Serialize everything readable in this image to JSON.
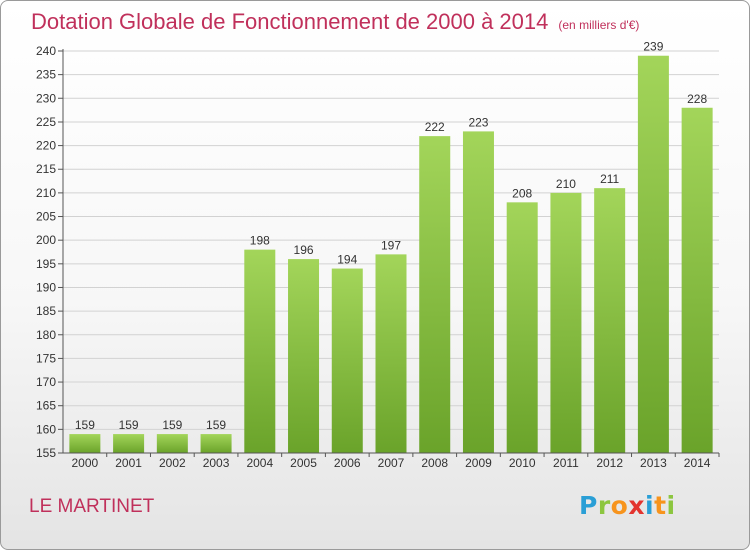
{
  "header": {
    "title": "Dotation Globale de Fonctionnement de 2000 à 2014",
    "subtitle": "(en milliers d'€)"
  },
  "footer": {
    "place": "LE MARTINET",
    "logo_letters": [
      {
        "ch": "P",
        "color": "#2a9fd6"
      },
      {
        "ch": "r",
        "color": "#8cc63f"
      },
      {
        "ch": "o",
        "color": "#f7941d"
      },
      {
        "ch": "x",
        "color": "#e3342f"
      },
      {
        "ch": "i",
        "color": "#2a9fd6"
      },
      {
        "ch": "t",
        "color": "#f7941d"
      },
      {
        "ch": "i",
        "color": "#8cc63f"
      }
    ]
  },
  "colors": {
    "bar_light": "#a3d55a",
    "bar_dark": "#6aa32a",
    "title": "#c0305b"
  },
  "chart_data": {
    "type": "bar",
    "categories": [
      "2000",
      "2001",
      "2002",
      "2003",
      "2004",
      "2005",
      "2006",
      "2007",
      "2008",
      "2009",
      "2010",
      "2011",
      "2012",
      "2013",
      "2014"
    ],
    "values": [
      159,
      159,
      159,
      159,
      198,
      196,
      194,
      197,
      222,
      223,
      208,
      210,
      211,
      239,
      228
    ],
    "ylim": [
      155,
      240
    ],
    "yticks": [
      155,
      160,
      165,
      170,
      175,
      180,
      185,
      190,
      195,
      200,
      205,
      210,
      215,
      220,
      225,
      230,
      235,
      240
    ],
    "grid": true
  }
}
